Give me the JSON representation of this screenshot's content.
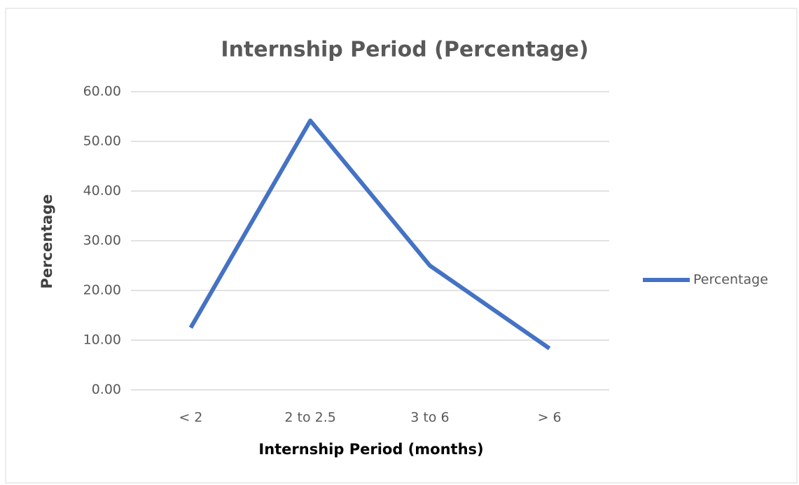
{
  "chart_data": {
    "type": "line",
    "title": "Internship Period (Percentage)",
    "x_label": "Internship Period (months)",
    "y_label": "Percentage",
    "categories": [
      "< 2",
      "2 to 2.5",
      "3 to 6",
      "> 6"
    ],
    "series": [
      {
        "name": "Percentage",
        "color": "#4472c4",
        "values": [
          12.5,
          54.17,
          25,
          8.33
        ]
      }
    ],
    "ylim": [
      0,
      60
    ],
    "yticks": [
      {
        "value": 0,
        "label": "0.00"
      },
      {
        "value": 10,
        "label": "10.00"
      },
      {
        "value": 20,
        "label": "20.00"
      },
      {
        "value": 30,
        "label": "30.00"
      },
      {
        "value": 40,
        "label": "40.00"
      },
      {
        "value": 50,
        "label": "50.00"
      },
      {
        "value": 60,
        "label": "60.00"
      }
    ],
    "grid": true,
    "legend": "right"
  }
}
